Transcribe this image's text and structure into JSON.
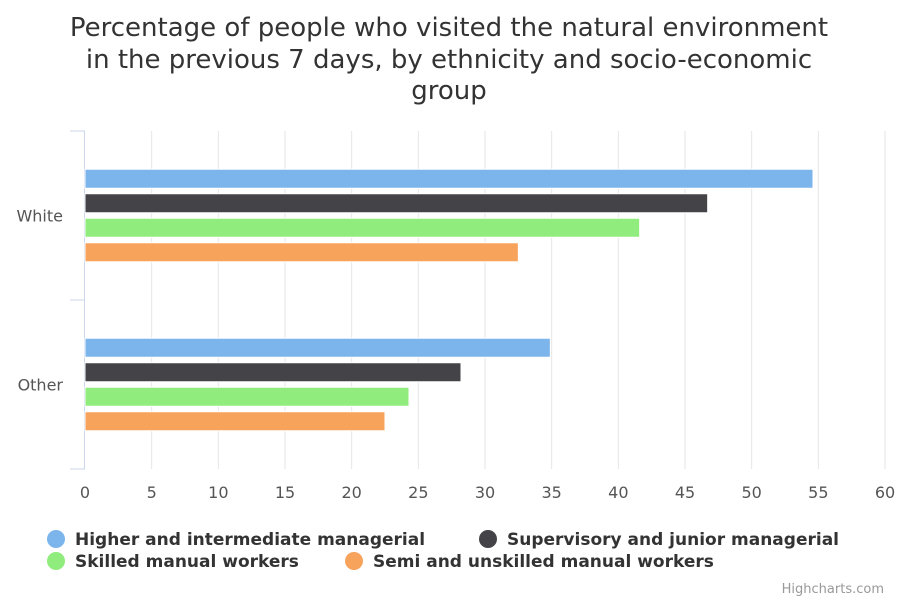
{
  "chart_data": {
    "type": "bar",
    "orientation": "horizontal",
    "title_lines": [
      "Percentage of people who visited the natural environment",
      "in the previous 7 days, by ethnicity and socio-economic",
      "group"
    ],
    "categories": [
      "White",
      "Other"
    ],
    "series": [
      {
        "name": "Higher and intermediate managerial",
        "color": "#7cb5ec",
        "values": [
          54.6,
          34.9
        ]
      },
      {
        "name": "Supervisory and junior managerial",
        "color": "#434348",
        "values": [
          46.7,
          28.2
        ]
      },
      {
        "name": "Skilled manual workers",
        "color": "#90ed7d",
        "values": [
          41.6,
          24.3
        ]
      },
      {
        "name": "Semi and unskilled manual workers",
        "color": "#f7a35c",
        "values": [
          32.5,
          22.5
        ]
      }
    ],
    "xlim": [
      0,
      60
    ],
    "ticks": [
      "0",
      "5",
      "10",
      "15",
      "20",
      "25",
      "30",
      "35",
      "40",
      "45",
      "50",
      "55",
      "60"
    ],
    "grid": true,
    "legend_position": "bottom"
  },
  "credits": "Highcharts.com"
}
